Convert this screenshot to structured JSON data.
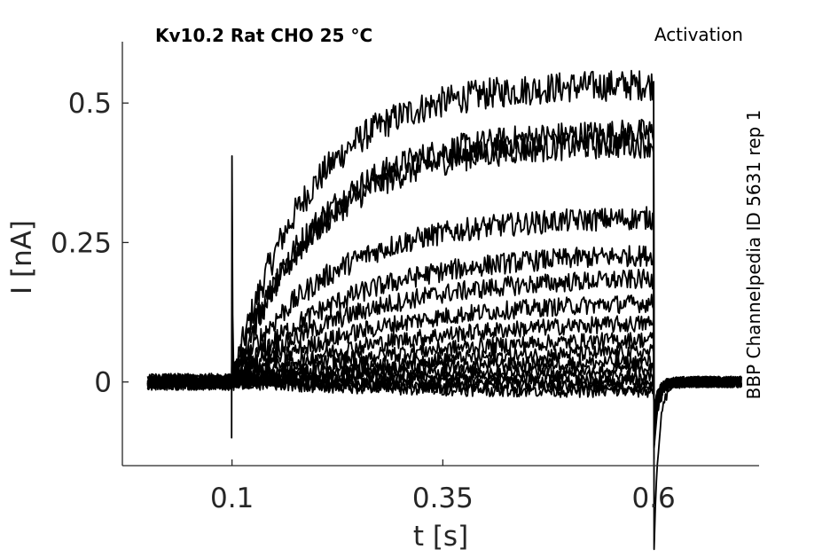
{
  "chart_data": {
    "type": "line",
    "title": "Kv10.2  Rat  CHO  25 °C",
    "protocol": "Activation",
    "side_note": "BBP Channelpedia ID 5631 rep 1",
    "xlabel": "t [s]",
    "ylabel": "I [nA]",
    "xlim": [
      -0.03,
      0.725
    ],
    "ylim": [
      -0.15,
      0.61
    ],
    "xticks": [
      0.1,
      0.35,
      0.6
    ],
    "xtick_labels": [
      "0.1",
      "0.35",
      "0.6"
    ],
    "yticks": [
      0,
      0.25,
      0.5
    ],
    "ytick_labels": [
      "0",
      "0.25",
      "0.5"
    ],
    "grid": false,
    "line_color": "#000000",
    "trace_start": 0.0,
    "pulse_start": 0.1,
    "pulse_end": 0.6,
    "trace_end": 0.705,
    "onset_spike": {
      "peak": 0.405,
      "trough": -0.1
    },
    "offset_tail": {
      "trough": -0.3
    },
    "series": [
      {
        "steady": 0.535,
        "tau": 0.09
      },
      {
        "steady": 0.45,
        "tau": 0.1
      },
      {
        "steady": 0.43,
        "tau": 0.1
      },
      {
        "steady": 0.297,
        "tau": 0.11
      },
      {
        "steady": 0.232,
        "tau": 0.13
      },
      {
        "steady": 0.19,
        "tau": 0.14
      },
      {
        "steady": 0.148,
        "tau": 0.16
      },
      {
        "steady": 0.112,
        "tau": 0.18
      },
      {
        "steady": 0.083,
        "tau": 0.2
      },
      {
        "steady": 0.06,
        "tau": 0.22
      },
      {
        "steady": 0.04,
        "tau": 0.22
      },
      {
        "steady": 0.025,
        "tau": 0.22
      },
      {
        "steady": 0.01,
        "tau": 0.2
      },
      {
        "steady": 0.0,
        "tau": 0.2
      },
      {
        "steady": -0.01,
        "tau": 0.2
      },
      {
        "steady": -0.018,
        "tau": 0.2
      }
    ]
  }
}
